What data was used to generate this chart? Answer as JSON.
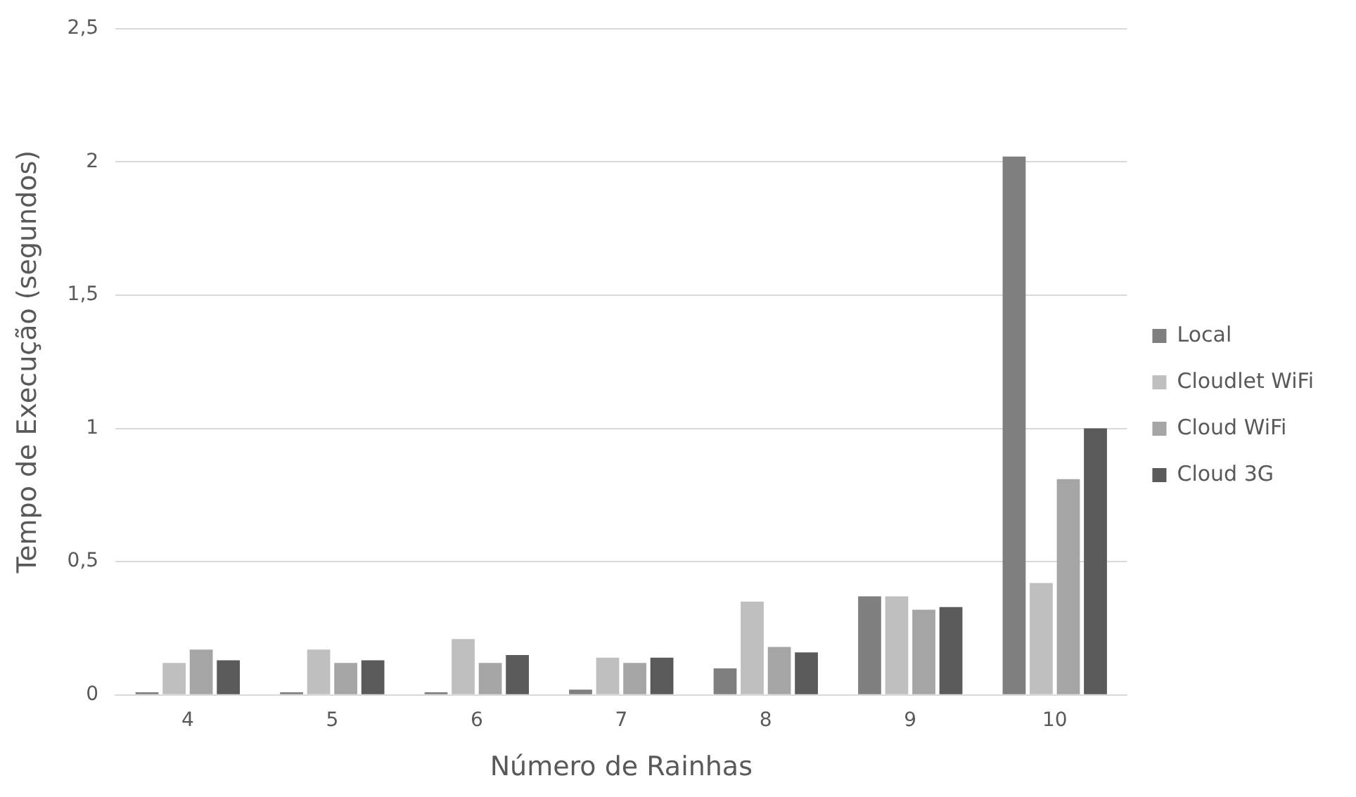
{
  "chart_data": {
    "type": "bar",
    "xlabel": "Número de Rainhas",
    "ylabel": "Tempo de Execução (segundos)",
    "categories": [
      "4",
      "5",
      "6",
      "7",
      "8",
      "9",
      "10"
    ],
    "series": [
      {
        "name": "Local",
        "color": "#7f7f7f",
        "values": [
          0.01,
          0.01,
          0.01,
          0.02,
          0.1,
          0.37,
          2.02
        ]
      },
      {
        "name": "Cloudlet WiFi",
        "color": "#bfbfbf",
        "values": [
          0.12,
          0.17,
          0.21,
          0.14,
          0.35,
          0.37,
          0.42
        ]
      },
      {
        "name": "Cloud WiFi",
        "color": "#a5a5a5",
        "values": [
          0.17,
          0.12,
          0.12,
          0.12,
          0.18,
          0.32,
          0.81
        ]
      },
      {
        "name": "Cloud 3G",
        "color": "#5a5a5a",
        "values": [
          0.13,
          0.13,
          0.15,
          0.14,
          0.16,
          0.33,
          1.0
        ]
      }
    ],
    "ylim": [
      0,
      2.5
    ],
    "yticks": [
      0,
      {
        "value": 0.5,
        "label": "0,5"
      },
      1,
      {
        "value": 1.5,
        "label": "1,5"
      },
      2,
      {
        "value": 2.5,
        "label": "2,5"
      }
    ],
    "grid": "y",
    "legend": "right"
  }
}
